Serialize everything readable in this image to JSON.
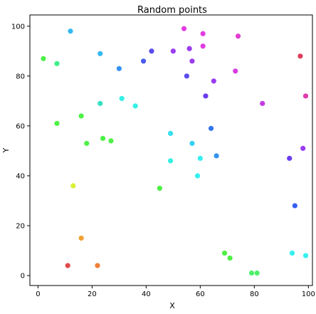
{
  "chart_data": {
    "type": "scatter",
    "title": "Random points",
    "xlabel": "X",
    "ylabel": "Y",
    "xlim": [
      -3,
      101.5
    ],
    "ylim": [
      -4,
      104.5
    ],
    "xticks": [
      0,
      20,
      40,
      60,
      80,
      100
    ],
    "yticks": [
      0,
      20,
      40,
      60,
      80,
      100
    ],
    "grid": false,
    "points": [
      {
        "x": 2,
        "y": 87,
        "color": "#4ef045"
      },
      {
        "x": 7,
        "y": 85,
        "color": "#3cf088"
      },
      {
        "x": 12,
        "y": 98,
        "color": "#35b8f0"
      },
      {
        "x": 23,
        "y": 89,
        "color": "#35b8f0"
      },
      {
        "x": 30,
        "y": 83,
        "color": "#3593f0"
      },
      {
        "x": 39,
        "y": 86,
        "color": "#4a5cf0"
      },
      {
        "x": 42,
        "y": 90,
        "color": "#5a4cf0"
      },
      {
        "x": 50,
        "y": 90,
        "color": "#9a3cf0"
      },
      {
        "x": 54,
        "y": 99,
        "color": "#e23ce2"
      },
      {
        "x": 56,
        "y": 91,
        "color": "#9a3cf0"
      },
      {
        "x": 57,
        "y": 86,
        "color": "#9a3cf0"
      },
      {
        "x": 55,
        "y": 80,
        "color": "#5a4cf0"
      },
      {
        "x": 61,
        "y": 97,
        "color": "#e23ce2"
      },
      {
        "x": 61,
        "y": 92,
        "color": "#e23ce2"
      },
      {
        "x": 74,
        "y": 96,
        "color": "#e23cd0"
      },
      {
        "x": 65,
        "y": 78,
        "color": "#9a3cf0"
      },
      {
        "x": 62,
        "y": 72,
        "color": "#6a3cf0"
      },
      {
        "x": 73,
        "y": 82,
        "color": "#d83ce2"
      },
      {
        "x": 97,
        "y": 88,
        "color": "#e23c5a"
      },
      {
        "x": 83,
        "y": 69,
        "color": "#c23ce2"
      },
      {
        "x": 99,
        "y": 72,
        "color": "#e23cb0"
      },
      {
        "x": 23,
        "y": 69,
        "color": "#35e0c0"
      },
      {
        "x": 31,
        "y": 71,
        "color": "#35f0e8"
      },
      {
        "x": 36,
        "y": 68,
        "color": "#35f0e8"
      },
      {
        "x": 16,
        "y": 64,
        "color": "#4ef045"
      },
      {
        "x": 7,
        "y": 61,
        "color": "#4ef045"
      },
      {
        "x": 18,
        "y": 53,
        "color": "#4ef045"
      },
      {
        "x": 24,
        "y": 55,
        "color": "#4ef045"
      },
      {
        "x": 27,
        "y": 54,
        "color": "#4ef045"
      },
      {
        "x": 49,
        "y": 57,
        "color": "#35e0f0"
      },
      {
        "x": 57,
        "y": 53,
        "color": "#35d0f0"
      },
      {
        "x": 64,
        "y": 59,
        "color": "#3575f0"
      },
      {
        "x": 66,
        "y": 48,
        "color": "#3593f0"
      },
      {
        "x": 60,
        "y": 47,
        "color": "#35f0f0"
      },
      {
        "x": 49,
        "y": 46,
        "color": "#35f0e0"
      },
      {
        "x": 59,
        "y": 40,
        "color": "#35f0f0"
      },
      {
        "x": 45,
        "y": 35,
        "color": "#4ef045"
      },
      {
        "x": 98,
        "y": 51,
        "color": "#9a3cf0"
      },
      {
        "x": 93,
        "y": 47,
        "color": "#6a3cf0"
      },
      {
        "x": 95,
        "y": 28,
        "color": "#3560f0"
      },
      {
        "x": 13,
        "y": 36,
        "color": "#d8f035"
      },
      {
        "x": 16,
        "y": 15,
        "color": "#f0a035"
      },
      {
        "x": 11,
        "y": 4,
        "color": "#e24a4a"
      },
      {
        "x": 22,
        "y": 4,
        "color": "#f08035"
      },
      {
        "x": 69,
        "y": 9,
        "color": "#4ef045"
      },
      {
        "x": 71,
        "y": 7,
        "color": "#4ef045"
      },
      {
        "x": 79,
        "y": 1,
        "color": "#4ef068"
      },
      {
        "x": 81,
        "y": 1,
        "color": "#4ef068"
      },
      {
        "x": 94,
        "y": 9,
        "color": "#35f0f0"
      },
      {
        "x": 99,
        "y": 8,
        "color": "#35f0f0"
      }
    ]
  }
}
